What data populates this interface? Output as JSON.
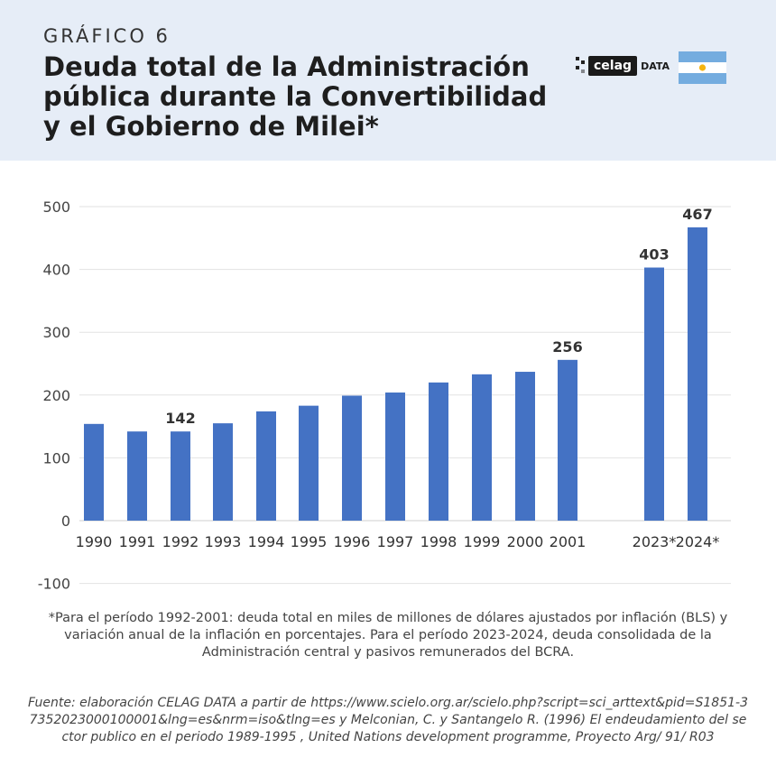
{
  "header": {
    "kicker": "GRÁFICO 6",
    "title": "Deuda total de la Administración pública durante la Convertibilidad y el Gobierno de Milei*",
    "logo_text": "celag",
    "logo_suffix": "DATA"
  },
  "colors": {
    "bar": "#4472c4",
    "header_bg": "#e6edf7",
    "flag_blue": "#74acdf",
    "flag_sun": "#f6b40e"
  },
  "chart_data": {
    "type": "bar",
    "categories": [
      "1990",
      "1991",
      "1992",
      "1993",
      "1994",
      "1995",
      "1996",
      "1997",
      "1998",
      "1999",
      "2000",
      "2001",
      "2023*",
      "2024*"
    ],
    "values": [
      154,
      142,
      142,
      155,
      174,
      183,
      199,
      204,
      220,
      233,
      237,
      256,
      403,
      467
    ],
    "data_labels": [
      "",
      "",
      "142",
      "",
      "",
      "",
      "",
      "",
      "",
      "",
      "",
      "256",
      "403",
      "467"
    ],
    "yticks": [
      "500",
      "400",
      "300",
      "200",
      "100",
      "0",
      "-100"
    ],
    "ylim": [
      -100,
      500
    ],
    "grid": true,
    "legend": "none"
  },
  "footnote": "*Para el período 1992-2001: deuda total en miles de millones de dólares ajustados por inflación (BLS) y variación anual de la inflación en porcentajes. Para el período 2023-2024, deuda consolidada de la Administración central y pasivos remunerados del BCRA.",
  "source": "Fuente: elaboración CELAG DATA a partir de https://www.scielo.org.ar/scielo.php?script=sci_arttext&pid=S1851-37352023000100001&lng=es&nrm=iso&tlng=es y Melconian, C. y Santangelo R. (1996) El endeudamiento del sector publico en el periodo 1989-1995 , United Nations development programme, Proyecto Arg/ 91/ R03"
}
